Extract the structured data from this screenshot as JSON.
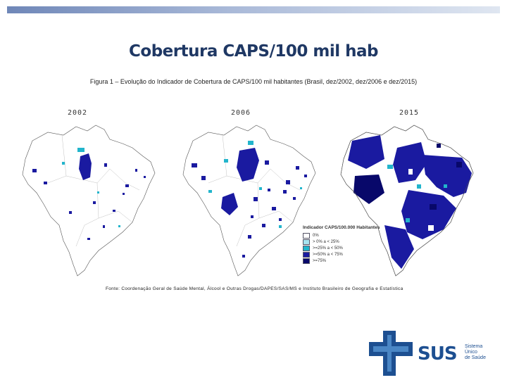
{
  "slide": {
    "title": "Cobertura CAPS/100 mil hab",
    "caption": "Figura 1 – Evolução do Indicador de Cobertura de CAPS/100 mil habitantes (Brasil, dez/2002, dez/2006 e dez/2015)"
  },
  "maps": [
    {
      "year": "2002"
    },
    {
      "year": "2006"
    },
    {
      "year": "2015"
    }
  ],
  "legend": {
    "title": "Indicador CAPS/100.000 Habitantes",
    "items": [
      {
        "label": "0%",
        "color": "#ffffff"
      },
      {
        "label": "> 0% a < 25%",
        "color": "#a8e4f0"
      },
      {
        "label": ">=25% a < 50%",
        "color": "#22b5cc"
      },
      {
        "label": ">=50% a < 75%",
        "color": "#1a1aa0"
      },
      {
        "label": ">=75%",
        "color": "#08086a"
      }
    ]
  },
  "source": "Fonte: Coordenação Geral de Saúde Mental, Álcool e Outras Drogas/DAPES/SAS/MS e Instituto Brasileiro de Geografia e Estatística",
  "logo": {
    "name": "SUS",
    "subtitle": [
      "Sistema",
      "Único",
      "de Saúde"
    ],
    "colors": {
      "blue": "#1d4f91",
      "light_blue": "#4a86c5"
    }
  }
}
